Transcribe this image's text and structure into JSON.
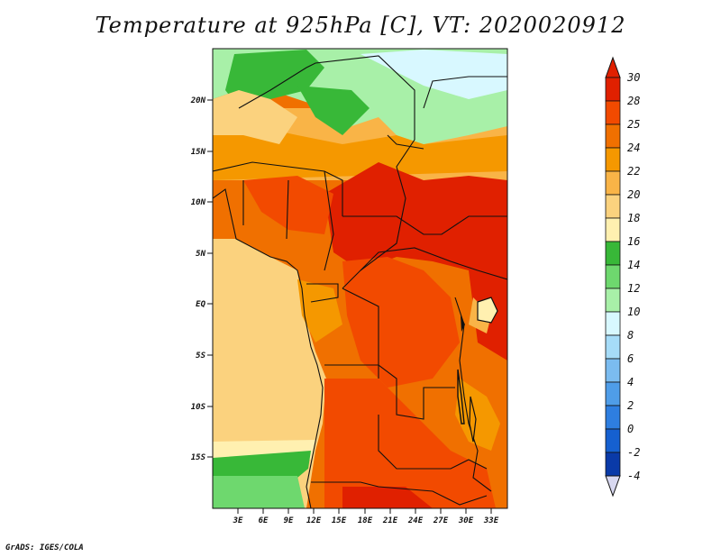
{
  "title": "Temperature at 925hPa [C], VT: 2020020912",
  "credit": "GrADS: IGES/COLA",
  "map": {
    "lat_labels": [
      "20N",
      "15N",
      "10N",
      "5N",
      "EQ",
      "5S",
      "10S",
      "15S"
    ],
    "lon_labels": [
      "3E",
      "6E",
      "9E",
      "12E",
      "15E",
      "18E",
      "21E",
      "24E",
      "27E",
      "30E",
      "33E"
    ]
  },
  "colorbar": {
    "labels": [
      "30",
      "28",
      "25",
      "24",
      "22",
      "20",
      "18",
      "16",
      "14",
      "12",
      "10",
      "8",
      "6",
      "4",
      "2",
      "0",
      "-2",
      "-4"
    ],
    "colors": [
      "#e02000",
      "#f24a00",
      "#f07000",
      "#f59800",
      "#f9b447",
      "#fbd27e",
      "#fff0b0",
      "#38b838",
      "#6ed86e",
      "#a8f0a8",
      "#d8f8ff",
      "#a6dcf8",
      "#7bbcf0",
      "#4f9de8",
      "#2e7ee0",
      "#1560d0",
      "#0a3aa8",
      "#050a60"
    ],
    "top_arrow": "#e02000",
    "bottom_arrow": "#d8d8f0"
  }
}
